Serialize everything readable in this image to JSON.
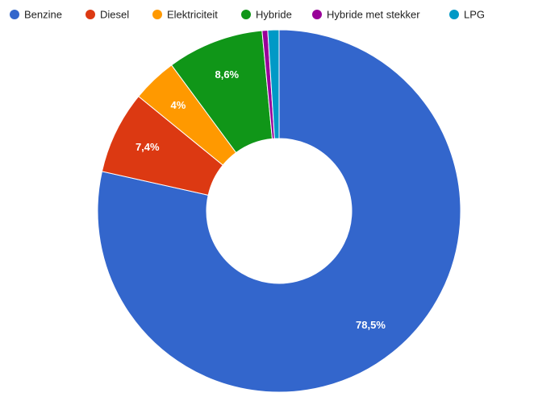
{
  "chart_data": {
    "type": "pie",
    "donut": true,
    "legend_position": "top",
    "slices": [
      {
        "name": "Benzine",
        "value": 78.5,
        "label": "78,5%",
        "color": "#3366cc"
      },
      {
        "name": "Diesel",
        "value": 7.4,
        "label": "7,4%",
        "color": "#dc3912"
      },
      {
        "name": "Elektriciteit",
        "value": 4.0,
        "label": "4%",
        "color": "#ff9900"
      },
      {
        "name": "Hybride",
        "value": 8.6,
        "label": "8,6%",
        "color": "#109618"
      },
      {
        "name": "Hybride met stekker",
        "value": 0.5,
        "label": "",
        "color": "#990099"
      },
      {
        "name": "LPG",
        "value": 1.0,
        "label": "",
        "color": "#0099c6"
      }
    ]
  }
}
